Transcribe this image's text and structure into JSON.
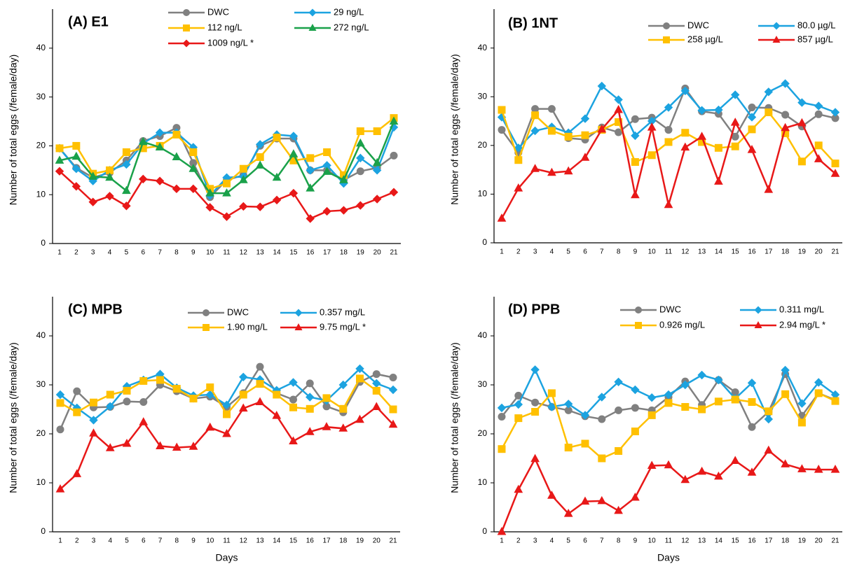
{
  "chart_data": [
    {
      "type": "line",
      "title": "(A) E1",
      "y_label": "Number of total eggs (/female/day)",
      "categories": [
        "1",
        "2",
        "3",
        "4",
        "5",
        "6",
        "7",
        "8",
        "9",
        "10",
        "11",
        "12",
        "13",
        "14",
        "15",
        "16",
        "17",
        "18",
        "19",
        "20",
        "21"
      ],
      "ylim": [
        0,
        48
      ],
      "yticks": [
        0,
        10,
        20,
        30,
        40
      ],
      "series": [
        {
          "name": "DWC",
          "color": "#808080",
          "marker": "circle",
          "values": [
            19.5,
            15.5,
            13.5,
            14.5,
            17,
            21,
            22,
            23.7,
            16.5,
            9.5,
            13,
            14,
            20,
            21.5,
            21.5,
            15,
            15,
            13,
            14.8,
            15.5,
            18
          ]
        },
        {
          "name": "29 ng/L",
          "color": "#1ca3e0",
          "marker": "diamond",
          "values": [
            19.5,
            15.3,
            12.8,
            15,
            16.2,
            20.5,
            22.7,
            22.7,
            19.7,
            9.8,
            13.5,
            13.7,
            20.3,
            22.3,
            22,
            15,
            16,
            12.3,
            17.5,
            15,
            23.8
          ]
        },
        {
          "name": "112 ng/L",
          "color": "#ffc000",
          "marker": "square",
          "values": [
            19.5,
            20,
            14.3,
            15,
            18.7,
            19.5,
            20,
            22.3,
            18.7,
            11.2,
            12.3,
            15.3,
            17.7,
            21.7,
            17,
            17.5,
            18.7,
            14,
            23,
            23,
            25.7
          ]
        },
        {
          "name": "272 ng/L",
          "color": "#1aa14a",
          "marker": "triangle",
          "values": [
            17,
            17.8,
            13.7,
            13.5,
            10.8,
            20.8,
            19.7,
            17.7,
            15.3,
            10.3,
            10.3,
            13,
            16,
            13.5,
            18.3,
            11.3,
            14.7,
            13,
            20.5,
            16.5,
            25
          ]
        },
        {
          "name": "1009 ng/L *",
          "color": "#e81818",
          "marker": "diamond",
          "values": [
            14.8,
            11.7,
            8.5,
            9.7,
            7.7,
            13.2,
            12.8,
            11.2,
            11.2,
            7.4,
            5.5,
            7.6,
            7.5,
            8.9,
            10.3,
            5.1,
            6.6,
            6.8,
            7.8,
            9.1,
            10.5
          ]
        }
      ]
    },
    {
      "type": "line",
      "title": "(B) 1NT",
      "y_label": "Number of total eggs (/female/day)",
      "categories": [
        "1",
        "2",
        "3",
        "4",
        "5",
        "6",
        "7",
        "8",
        "9",
        "10",
        "11",
        "12",
        "13",
        "14",
        "15",
        "16",
        "17",
        "18",
        "19",
        "20",
        "21"
      ],
      "ylim": [
        0,
        48
      ],
      "yticks": [
        0,
        10,
        20,
        30,
        40
      ],
      "series": [
        {
          "name": "DWC",
          "color": "#808080",
          "marker": "circle",
          "values": [
            23.2,
            18.5,
            27.5,
            27.5,
            21.5,
            21.2,
            23.7,
            22.7,
            25.4,
            25.7,
            23.2,
            31.7,
            27,
            26.5,
            21.8,
            27.8,
            27.7,
            26.3,
            23.9,
            26.4,
            25.6
          ]
        },
        {
          "name": "80.0 µg/L",
          "color": "#1ca3e0",
          "marker": "diamond",
          "values": [
            25.8,
            19.5,
            23,
            23.8,
            22.6,
            25.5,
            32.2,
            29.4,
            22,
            25,
            27.8,
            31.2,
            27.2,
            27.3,
            30.4,
            25.8,
            31,
            32.7,
            28.8,
            28.1,
            26.8
          ]
        },
        {
          "name": "258 µg/L",
          "color": "#ffc000",
          "marker": "square",
          "values": [
            27.3,
            17,
            26.2,
            23,
            21.8,
            22.1,
            23.2,
            24.8,
            16.6,
            18,
            20.7,
            22.6,
            20.7,
            19.5,
            19.8,
            23.3,
            26.8,
            22.5,
            16.7,
            20,
            16.3
          ]
        },
        {
          "name": "857 µg/L",
          "color": "#e81818",
          "marker": "triangle",
          "values": [
            5,
            11.2,
            15.2,
            14.4,
            14.7,
            17.5,
            23.3,
            27.3,
            9.8,
            23.7,
            7.8,
            19.6,
            21.8,
            12.6,
            24.7,
            19.1,
            10.9,
            23.6,
            24.6,
            17.2,
            14.2
          ]
        }
      ]
    },
    {
      "type": "line",
      "title": "(C) MPB",
      "y_label": "Number of total eggs (/female/day)",
      "x_label": "Days",
      "categories": [
        "1",
        "2",
        "3",
        "4",
        "5",
        "6",
        "7",
        "8",
        "9",
        "10",
        "11",
        "12",
        "13",
        "14",
        "15",
        "16",
        "17",
        "18",
        "19",
        "20",
        "21"
      ],
      "ylim": [
        0,
        48
      ],
      "yticks": [
        0,
        10,
        20,
        30,
        40
      ],
      "series": [
        {
          "name": "DWC",
          "color": "#808080",
          "marker": "circle",
          "values": [
            20.9,
            28.7,
            25.4,
            25.5,
            26.6,
            26.5,
            30,
            28.7,
            27.2,
            27.6,
            25.5,
            28.3,
            33.7,
            28.3,
            27,
            30.3,
            25.6,
            24.4,
            30.6,
            32.2,
            31.5
          ]
        },
        {
          "name": "0.357 mg/L",
          "color": "#1ca3e0",
          "marker": "diamond",
          "values": [
            28,
            25.3,
            22.8,
            25.6,
            29.7,
            31,
            32.2,
            29.4,
            27.8,
            28,
            25.9,
            31.6,
            31.1,
            28.9,
            30.5,
            27.5,
            26.8,
            30,
            33.3,
            30.3,
            29
          ]
        },
        {
          "name": "1.90 mg/L",
          "color": "#ffc000",
          "marker": "square",
          "values": [
            26.3,
            24.4,
            26.4,
            28,
            28.8,
            30.8,
            31,
            29.2,
            27.2,
            29.5,
            24,
            28,
            30.2,
            28,
            25.4,
            25.1,
            27.3,
            25.1,
            31.3,
            28.8,
            25
          ]
        },
        {
          "name": "9.75 mg/L *",
          "color": "#e81818",
          "marker": "triangle",
          "values": [
            8.7,
            11.8,
            20.1,
            17.1,
            18,
            22.4,
            17.5,
            17.2,
            17.4,
            21.3,
            20,
            25.2,
            26.5,
            23.7,
            18.5,
            20.4,
            21.4,
            21.1,
            22.9,
            25.5,
            21.9
          ]
        }
      ]
    },
    {
      "type": "line",
      "title": "(D) PPB",
      "y_label": "Number of total eggs (/female/day)",
      "x_label": "Days",
      "categories": [
        "1",
        "2",
        "3",
        "4",
        "5",
        "6",
        "7",
        "8",
        "9",
        "10",
        "11",
        "12",
        "13",
        "14",
        "15",
        "16",
        "17",
        "18",
        "19",
        "20",
        "21"
      ],
      "ylim": [
        0,
        48
      ],
      "yticks": [
        0,
        10,
        20,
        30,
        40
      ],
      "series": [
        {
          "name": "DWC",
          "color": "#808080",
          "marker": "circle",
          "values": [
            23.5,
            27.8,
            26.4,
            25.5,
            24.8,
            23.6,
            23,
            24.8,
            25.3,
            24.8,
            27.5,
            30.7,
            25.9,
            31,
            28.5,
            21.4,
            24.5,
            32.2,
            23.7,
            28.3,
            26.9
          ]
        },
        {
          "name": "0.311 mg/L",
          "color": "#1ca3e0",
          "marker": "diamond",
          "values": [
            25.3,
            26,
            33.1,
            25.5,
            26.1,
            23.8,
            27.5,
            30.6,
            29,
            27.4,
            28,
            30,
            32,
            31,
            27.2,
            30.4,
            23,
            33,
            26.2,
            30.5,
            28
          ]
        },
        {
          "name": "0.926 mg/L",
          "color": "#ffc000",
          "marker": "square",
          "values": [
            16.9,
            23.2,
            24.5,
            28.3,
            17.2,
            18,
            15,
            16.5,
            20.5,
            23.8,
            26.3,
            25.5,
            25,
            26.6,
            27,
            26.5,
            24.6,
            28.1,
            22.3,
            28.3,
            26.7
          ]
        },
        {
          "name": "2.94 mg/L *",
          "color": "#e81818",
          "marker": "triangle",
          "values": [
            0,
            8.6,
            14.9,
            7.4,
            3.7,
            6.2,
            6.3,
            4.3,
            7,
            13.5,
            13.6,
            10.6,
            12.3,
            11.3,
            14.5,
            12.1,
            16.6,
            13.8,
            12.8,
            12.7,
            12.7
          ]
        }
      ]
    }
  ]
}
